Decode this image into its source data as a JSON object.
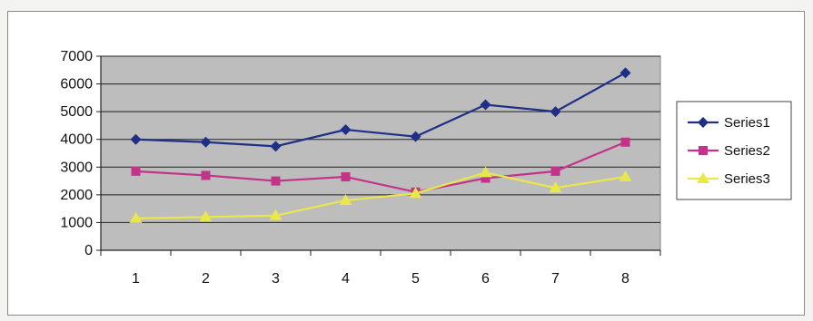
{
  "chart_data": {
    "type": "line",
    "x": [
      1,
      2,
      3,
      4,
      5,
      6,
      7,
      8
    ],
    "ylim": [
      0,
      7000
    ],
    "yticks": [
      0,
      1000,
      2000,
      3000,
      4000,
      5000,
      6000,
      7000
    ],
    "grid": true,
    "legend_position": "right",
    "plot_background": "#bdbdbd",
    "series": [
      {
        "name": "Series1",
        "color": "#1f2f86",
        "marker": "diamond",
        "values": [
          4000,
          3900,
          3750,
          4350,
          4100,
          5250,
          5000,
          6400
        ]
      },
      {
        "name": "Series2",
        "color": "#c2338a",
        "marker": "square",
        "values": [
          2850,
          2700,
          2500,
          2650,
          2100,
          2600,
          2850,
          3900
        ]
      },
      {
        "name": "Series3",
        "color": "#e8e84a",
        "marker": "triangle",
        "values": [
          1150,
          1200,
          1250,
          1800,
          2050,
          2800,
          2250,
          2650
        ]
      }
    ]
  }
}
